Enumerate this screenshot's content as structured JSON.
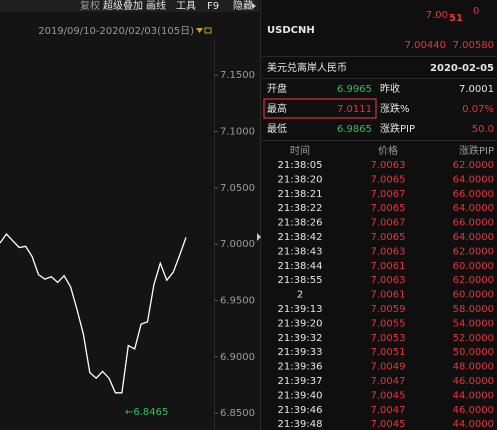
{
  "toolbar": [
    "复权",
    "超级叠加",
    "画线",
    "工具",
    "F9",
    "隐藏"
  ],
  "chart_data": {
    "type": "line",
    "date_range": "2019/09/10-2020/02/03(105日)",
    "values": [
      7.001,
      7.009,
      7.003,
      6.997,
      6.998,
      6.989,
      6.973,
      6.969,
      6.971,
      6.966,
      6.972,
      6.962,
      6.942,
      6.92,
      6.886,
      6.881,
      6.887,
      6.881,
      6.868,
      6.868,
      6.91,
      6.907,
      6.929,
      6.931,
      6.964,
      6.983,
      6.968,
      6.975,
      6.99,
      7.006
    ],
    "color": "#ffffff",
    "ylim": [
      6.835,
      7.183
    ],
    "yticks": [
      {
        "value": 6.85,
        "label": "6.8500"
      },
      {
        "value": 6.9,
        "label": "6.9000"
      },
      {
        "value": 6.95,
        "label": "6.9500"
      },
      {
        "value": 7.0,
        "label": "7.0000"
      },
      {
        "value": 7.05,
        "label": "7.0500"
      },
      {
        "value": 7.1,
        "label": "7.1000"
      },
      {
        "value": 7.15,
        "label": "7.1500"
      }
    ],
    "annotations": [
      "←6.8465"
    ]
  },
  "quote": {
    "symbol": "USDCNH",
    "price_main": "7.00",
    "price_big": "51",
    "price_small": "0",
    "bid": "7.00440",
    "ask": "7.00580",
    "name": "美元兑离岸人民币",
    "date": "2020-02-05"
  },
  "stats": [
    {
      "label": "开盘",
      "value": "6.9965",
      "color": "#2fbf5f"
    },
    {
      "label": "昨收",
      "value": "7.0001",
      "color": "#e6e6e6"
    },
    {
      "label": "最高",
      "value": "7.0111",
      "color": "#e8333a"
    },
    {
      "label": "涨跌%",
      "value": "0.07%",
      "color": "#e8333a"
    },
    {
      "label": "最低",
      "value": "6.9865",
      "color": "#2fbf5f"
    },
    {
      "label": "涨跌PIP",
      "value": "50.0",
      "color": "#e8333a"
    }
  ],
  "ticks_table": {
    "columns": [
      "时间",
      "价格",
      "涨跌PIP"
    ],
    "rows": [
      [
        "21:38:05",
        "7.0063",
        "62.0000"
      ],
      [
        "21:38:20",
        "7.0065",
        "64.0000"
      ],
      [
        "21:38:21",
        "7.0067",
        "66.0000"
      ],
      [
        "21:38:22",
        "7.0065",
        "64.0000"
      ],
      [
        "21:38:26",
        "7.0067",
        "66.0000"
      ],
      [
        "21:38:42",
        "7.0065",
        "64.0000"
      ],
      [
        "21:38:43",
        "7.0063",
        "62.0000"
      ],
      [
        "21:38:44",
        "7.0061",
        "60.0000"
      ],
      [
        "21:38:55",
        "7.0063",
        "62.0000"
      ],
      [
        "2",
        "7.0061",
        "60.0000"
      ],
      [
        "21:39:13",
        "7.0059",
        "58.0000"
      ],
      [
        "21:39:20",
        "7.0055",
        "54.0000"
      ],
      [
        "21:39:32",
        "7.0053",
        "52.0000"
      ],
      [
        "21:39:33",
        "7.0051",
        "50.0000"
      ],
      [
        "21:39:36",
        "7.0049",
        "48.0000"
      ],
      [
        "21:39:37",
        "7.0047",
        "46.0000"
      ],
      [
        "21:39:40",
        "7.0045",
        "44.0000"
      ],
      [
        "21:39:46",
        "7.0047",
        "46.0000"
      ],
      [
        "21:39:48",
        "7.0045",
        "44.0000"
      ]
    ]
  }
}
